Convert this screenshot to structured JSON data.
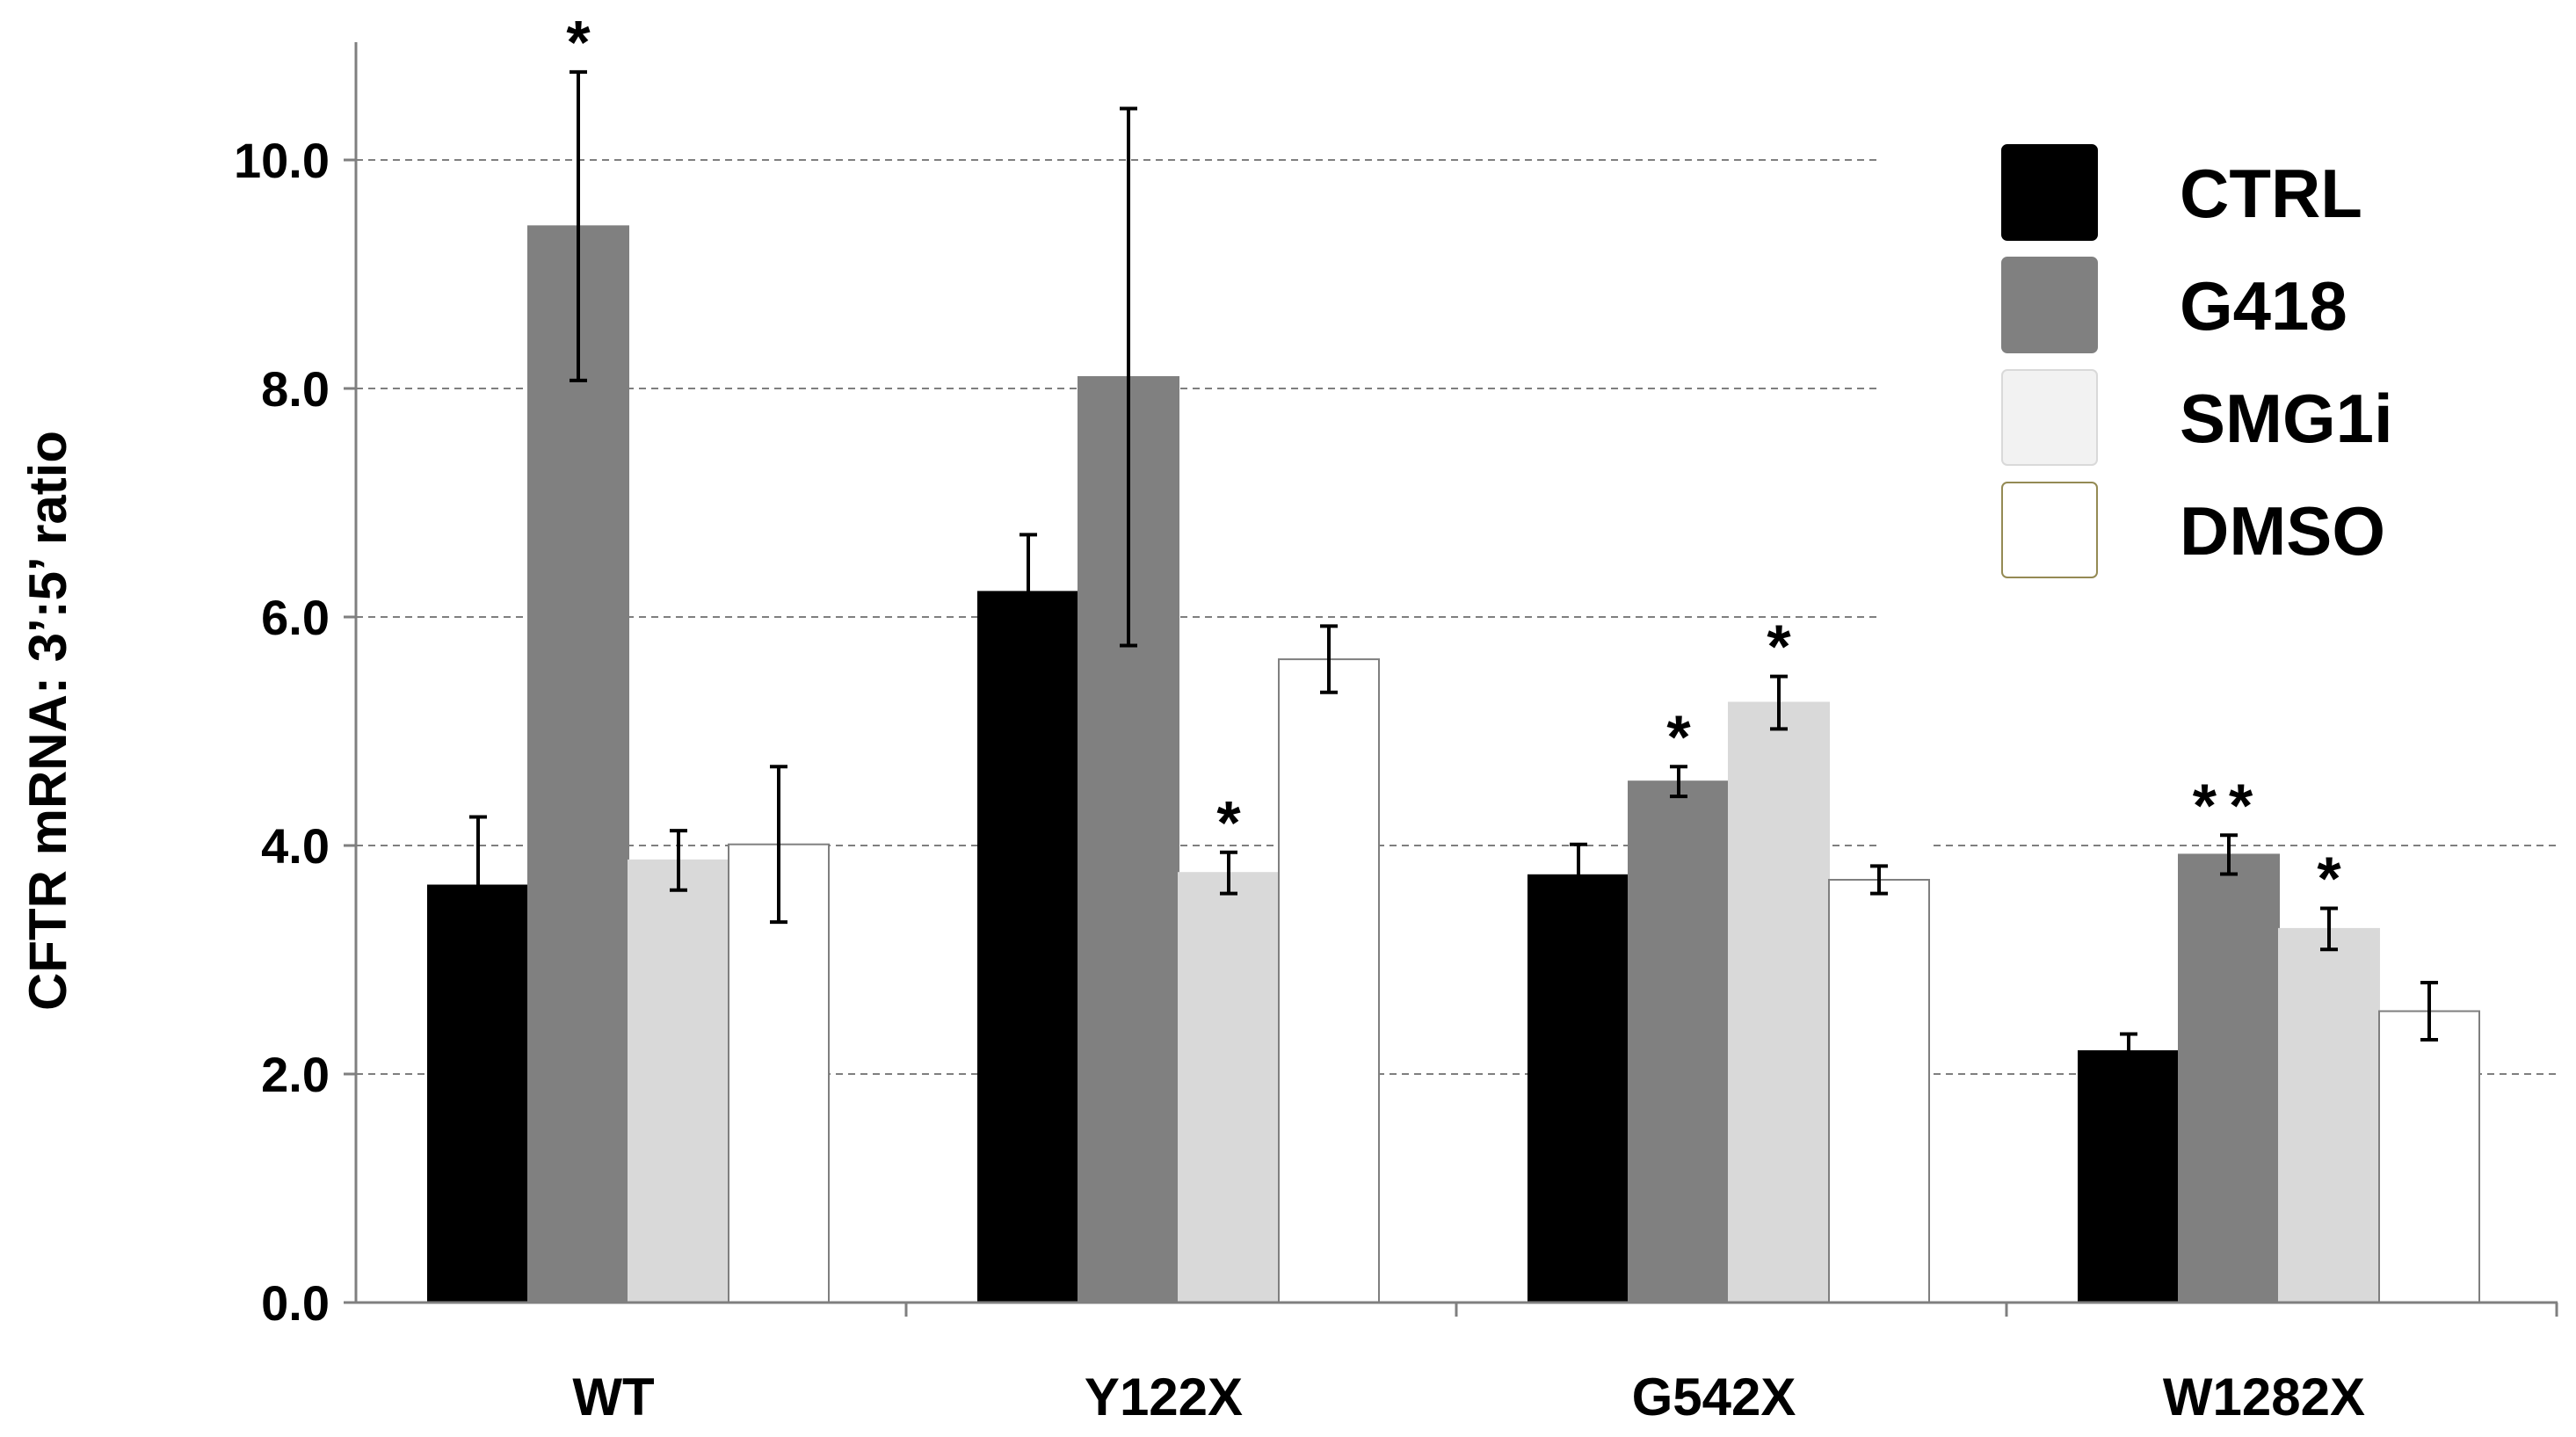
{
  "chart_data": {
    "type": "bar",
    "title": "",
    "xlabel": "",
    "ylabel": "CFTR mRNA: 3’:5’ ratio",
    "ylim": [
      0,
      11
    ],
    "yticks": [
      0,
      2,
      4,
      6,
      8,
      10
    ],
    "ytick_labels": [
      "0.0",
      "2.0",
      "4.0",
      "6.0",
      "8.0",
      "10.0"
    ],
    "grid": "horizontal-dashed",
    "legend_position": "top-right",
    "categories": [
      "WT",
      "Y122X",
      "G542X",
      "W1282X"
    ],
    "series": [
      {
        "name": "CTRL",
        "color": "#000000",
        "stroke": "#000000",
        "values": [
          3.65,
          6.22,
          3.74,
          2.2
        ],
        "errors": [
          0.6,
          0.5,
          0.27,
          0.15
        ],
        "significance": [
          "",
          "",
          "",
          ""
        ]
      },
      {
        "name": "G418",
        "color": "#808080",
        "stroke": "#808080",
        "values": [
          9.42,
          8.1,
          4.56,
          3.92
        ],
        "errors": [
          1.35,
          2.35,
          0.13,
          0.17
        ],
        "significance": [
          "*",
          "",
          "*",
          "**"
        ]
      },
      {
        "name": "SMG1i",
        "color": "#d9d9d9",
        "stroke": "#d9d9d9",
        "values": [
          3.87,
          3.76,
          5.25,
          3.27
        ],
        "errors": [
          0.26,
          0.18,
          0.23,
          0.18
        ],
        "significance": [
          "",
          "*",
          "*",
          "*"
        ]
      },
      {
        "name": "DMSO",
        "color": "#ffffff",
        "stroke": "#7f7f7f",
        "values": [
          4.01,
          5.63,
          3.7,
          2.55
        ],
        "errors": [
          0.68,
          0.29,
          0.12,
          0.25
        ],
        "significance": [
          "",
          "",
          "",
          ""
        ]
      }
    ],
    "legend_swatch_fills": [
      "#000000",
      "#808080",
      "#f2f2f2",
      "#ffffff"
    ],
    "legend_swatch_strokes": [
      "#000000",
      "#808080",
      "#d9d9d9",
      "#948a54"
    ]
  }
}
